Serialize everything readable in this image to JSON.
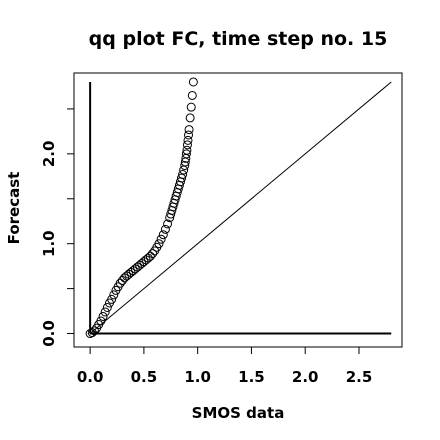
{
  "chart_data": {
    "type": "scatter",
    "title": "qq plot FC, time step no. 15",
    "xlabel": "SMOS data",
    "ylabel": "Forecast",
    "xlim": [
      -0.15,
      2.9
    ],
    "ylim": [
      -0.15,
      2.9
    ],
    "x_ticks": [
      {
        "value": 0.0,
        "label": "0.0"
      },
      {
        "value": 0.5,
        "label": "0.5"
      },
      {
        "value": 1.0,
        "label": "1.0"
      },
      {
        "value": 1.5,
        "label": "1.5"
      },
      {
        "value": 2.0,
        "label": "2.0"
      },
      {
        "value": 2.5,
        "label": "2.5"
      }
    ],
    "y_ticks": [
      {
        "value": 0.0,
        "label": "0.0"
      },
      {
        "value": 0.5,
        "label": ""
      },
      {
        "value": 1.0,
        "label": "1.0"
      },
      {
        "value": 1.5,
        "label": ""
      },
      {
        "value": 2.0,
        "label": "2.0"
      },
      {
        "value": 2.5,
        "label": ""
      }
    ],
    "reference_lines": {
      "diagonal": {
        "from": [
          0,
          0
        ],
        "to": [
          2.8,
          2.8
        ]
      },
      "horizontal": {
        "y": 0,
        "from_x": 0,
        "to_x": 2.8
      },
      "vertical": {
        "x": 0,
        "from_y": 0,
        "to_y": 2.8
      }
    },
    "series": [
      {
        "marker": "open-circle",
        "x": [
          0.0,
          0.02,
          0.04,
          0.06,
          0.08,
          0.1,
          0.12,
          0.14,
          0.16,
          0.18,
          0.2,
          0.22,
          0.24,
          0.26,
          0.28,
          0.3,
          0.32,
          0.34,
          0.36,
          0.38,
          0.4,
          0.42,
          0.44,
          0.46,
          0.48,
          0.5,
          0.52,
          0.54,
          0.56,
          0.58,
          0.6,
          0.62,
          0.64,
          0.66,
          0.68,
          0.7,
          0.72,
          0.74,
          0.75,
          0.76,
          0.77,
          0.78,
          0.79,
          0.8,
          0.81,
          0.82,
          0.83,
          0.84,
          0.85,
          0.86,
          0.87,
          0.88,
          0.885,
          0.89,
          0.895,
          0.9,
          0.905,
          0.91,
          0.915,
          0.92,
          0.93,
          0.94,
          0.95,
          0.96
        ],
        "y": [
          0.0,
          0.01,
          0.03,
          0.06,
          0.1,
          0.14,
          0.19,
          0.24,
          0.29,
          0.34,
          0.38,
          0.43,
          0.48,
          0.52,
          0.56,
          0.59,
          0.62,
          0.64,
          0.66,
          0.68,
          0.7,
          0.72,
          0.74,
          0.76,
          0.78,
          0.8,
          0.82,
          0.84,
          0.86,
          0.89,
          0.92,
          0.96,
          1.0,
          1.05,
          1.1,
          1.16,
          1.22,
          1.29,
          1.33,
          1.37,
          1.41,
          1.45,
          1.49,
          1.53,
          1.57,
          1.61,
          1.65,
          1.69,
          1.73,
          1.77,
          1.82,
          1.87,
          1.91,
          1.95,
          2.0,
          2.04,
          2.1,
          2.15,
          2.21,
          2.27,
          2.4,
          2.52,
          2.65,
          2.8
        ]
      }
    ]
  }
}
